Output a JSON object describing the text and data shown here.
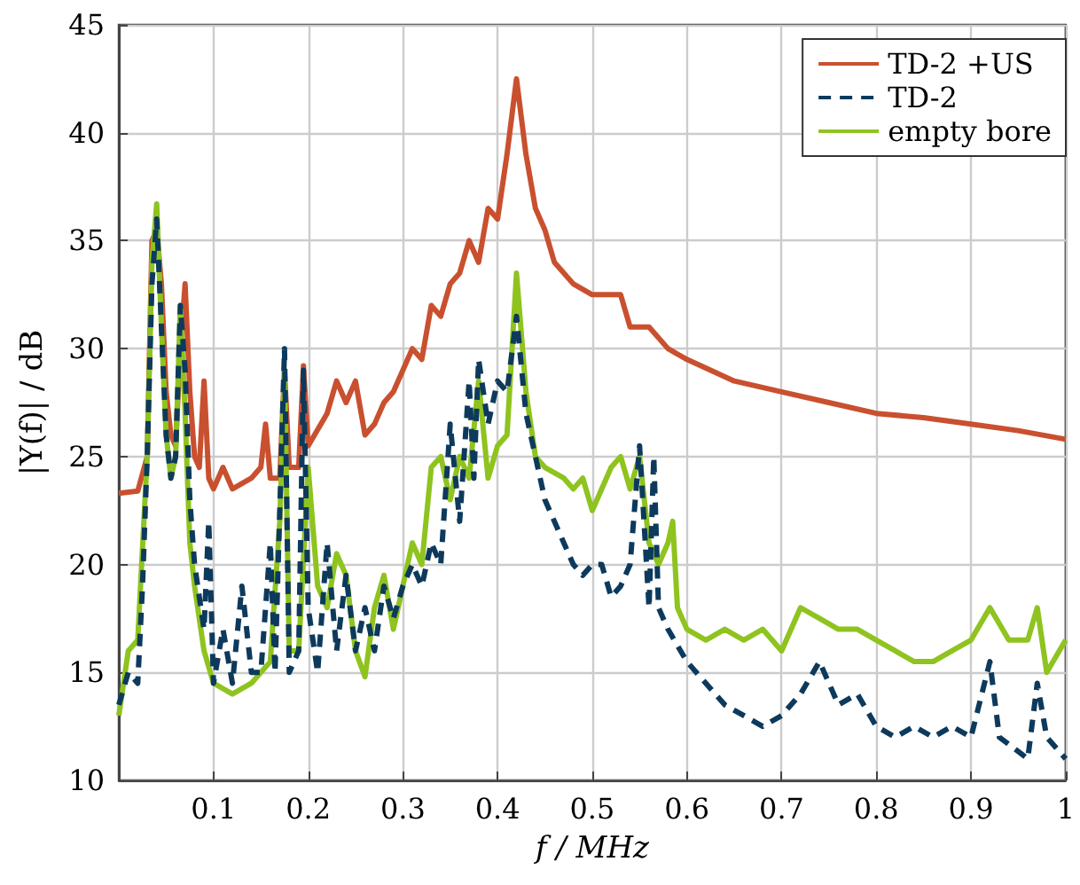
{
  "chart_data": {
    "type": "line",
    "xlabel": "f / MHz",
    "ylabel": "|Y(f)| / dB",
    "xlim": [
      0,
      1
    ],
    "xticks": [
      0.1,
      0.2,
      0.3,
      0.4,
      0.5,
      0.6,
      0.7,
      0.8,
      0.9,
      1
    ],
    "ylim": [
      10,
      45
    ],
    "yticks": [
      10,
      15,
      20,
      25,
      30,
      35,
      40,
      45
    ],
    "grid": true,
    "legend": "top right",
    "series": [
      {
        "name": "TD-2 +US",
        "color": "#c9502f",
        "line_style": "solid",
        "x": [
          0,
          0.02,
          0.03,
          0.035,
          0.04,
          0.045,
          0.05,
          0.055,
          0.06,
          0.065,
          0.07,
          0.075,
          0.08,
          0.085,
          0.09,
          0.095,
          0.1,
          0.11,
          0.12,
          0.14,
          0.15,
          0.155,
          0.16,
          0.17,
          0.175,
          0.18,
          0.19,
          0.195,
          0.2,
          0.22,
          0.23,
          0.24,
          0.25,
          0.26,
          0.27,
          0.28,
          0.29,
          0.3,
          0.31,
          0.32,
          0.33,
          0.34,
          0.35,
          0.36,
          0.37,
          0.38,
          0.39,
          0.4,
          0.41,
          0.42,
          0.43,
          0.44,
          0.45,
          0.46,
          0.48,
          0.5,
          0.52,
          0.53,
          0.54,
          0.56,
          0.58,
          0.6,
          0.65,
          0.7,
          0.75,
          0.8,
          0.85,
          0.9,
          0.95,
          1
        ],
        "values": [
          23.3,
          23.4,
          25,
          35,
          35.5,
          33,
          28,
          26,
          25.5,
          30,
          33,
          28,
          25,
          24.5,
          28.5,
          24,
          23.5,
          24.5,
          23.5,
          24,
          24.5,
          26.5,
          24,
          24,
          29,
          24.5,
          24.5,
          29.2,
          25.5,
          27,
          28.5,
          27.5,
          28.5,
          26,
          26.5,
          27.5,
          28,
          29,
          30,
          29.5,
          32,
          31.5,
          33,
          33.5,
          35,
          34,
          36.5,
          36,
          39,
          42.5,
          39,
          36.5,
          35.5,
          34,
          33,
          32.5,
          32.5,
          32.5,
          31,
          31,
          30,
          29.5,
          28.5,
          28,
          27.5,
          27,
          26.8,
          26.5,
          26.2,
          25.8
        ]
      },
      {
        "name": "TD-2",
        "color": "#0d3a5c",
        "line_style": "dashed",
        "x": [
          0,
          0.01,
          0.02,
          0.025,
          0.03,
          0.035,
          0.04,
          0.045,
          0.05,
          0.055,
          0.06,
          0.065,
          0.07,
          0.075,
          0.08,
          0.09,
          0.095,
          0.1,
          0.11,
          0.12,
          0.13,
          0.14,
          0.15,
          0.16,
          0.165,
          0.175,
          0.18,
          0.19,
          0.195,
          0.2,
          0.21,
          0.22,
          0.23,
          0.24,
          0.25,
          0.26,
          0.27,
          0.28,
          0.29,
          0.3,
          0.31,
          0.32,
          0.33,
          0.34,
          0.35,
          0.36,
          0.37,
          0.375,
          0.38,
          0.39,
          0.4,
          0.41,
          0.42,
          0.43,
          0.44,
          0.45,
          0.46,
          0.47,
          0.48,
          0.49,
          0.5,
          0.51,
          0.52,
          0.53,
          0.54,
          0.55,
          0.56,
          0.565,
          0.57,
          0.58,
          0.6,
          0.62,
          0.64,
          0.66,
          0.68,
          0.7,
          0.72,
          0.74,
          0.76,
          0.78,
          0.8,
          0.82,
          0.84,
          0.86,
          0.88,
          0.9,
          0.92,
          0.93,
          0.96,
          0.97,
          0.98,
          1
        ],
        "values": [
          13.5,
          15,
          14.5,
          19,
          25,
          33,
          36,
          31,
          26,
          24,
          25,
          32,
          29,
          23,
          20,
          17,
          22,
          14.5,
          17,
          14.5,
          19,
          15,
          15,
          21,
          15,
          30,
          15,
          16,
          29,
          18,
          15,
          21,
          16,
          19.5,
          16,
          18,
          16,
          19,
          17.5,
          19,
          20,
          19,
          21,
          20,
          26.5,
          22,
          28.5,
          24,
          29.5,
          26.5,
          28.5,
          28,
          31.5,
          27,
          25,
          23,
          22,
          21,
          20,
          19.5,
          20,
          20,
          18.5,
          19,
          20,
          25.5,
          18,
          25,
          18,
          17,
          15.5,
          14.5,
          13.5,
          13,
          12.5,
          13,
          14,
          15.5,
          13.5,
          14,
          12.5,
          12,
          12.5,
          12,
          12.5,
          12,
          15.5,
          12,
          11,
          14.5,
          12,
          11
        ]
      },
      {
        "name": "empty bore",
        "color": "#8fc31f",
        "line_style": "solid",
        "x": [
          0,
          0.01,
          0.02,
          0.03,
          0.035,
          0.04,
          0.045,
          0.05,
          0.055,
          0.06,
          0.065,
          0.07,
          0.075,
          0.08,
          0.09,
          0.1,
          0.12,
          0.14,
          0.16,
          0.17,
          0.175,
          0.18,
          0.19,
          0.2,
          0.21,
          0.22,
          0.23,
          0.24,
          0.25,
          0.26,
          0.27,
          0.28,
          0.29,
          0.3,
          0.31,
          0.32,
          0.33,
          0.34,
          0.35,
          0.36,
          0.37,
          0.38,
          0.39,
          0.4,
          0.41,
          0.42,
          0.43,
          0.44,
          0.45,
          0.47,
          0.48,
          0.49,
          0.5,
          0.52,
          0.53,
          0.54,
          0.55,
          0.56,
          0.57,
          0.58,
          0.585,
          0.59,
          0.6,
          0.62,
          0.64,
          0.66,
          0.68,
          0.7,
          0.72,
          0.74,
          0.76,
          0.78,
          0.8,
          0.82,
          0.84,
          0.86,
          0.88,
          0.9,
          0.92,
          0.94,
          0.96,
          0.97,
          0.98,
          1
        ],
        "values": [
          13,
          16,
          16.5,
          25,
          34,
          36.7,
          31,
          26,
          24,
          25,
          32,
          27,
          21,
          19,
          16,
          14.5,
          14,
          14.5,
          15.5,
          22,
          29,
          16,
          16,
          24.5,
          19,
          18,
          20.5,
          19.5,
          16,
          14.8,
          18,
          19.5,
          17,
          19,
          21,
          20,
          24.5,
          25,
          23,
          25,
          24,
          28.5,
          24,
          25.5,
          26,
          33.5,
          28,
          25,
          24.5,
          24,
          23.5,
          24,
          22.5,
          24.5,
          25,
          23.5,
          25,
          21,
          20,
          21,
          22,
          18,
          17,
          16.5,
          17,
          16.5,
          17,
          16,
          18,
          17.5,
          17,
          17,
          16.5,
          16,
          15.5,
          15.5,
          16,
          16.5,
          18,
          16.5,
          16.5,
          18,
          15,
          16.5
        ]
      }
    ]
  }
}
